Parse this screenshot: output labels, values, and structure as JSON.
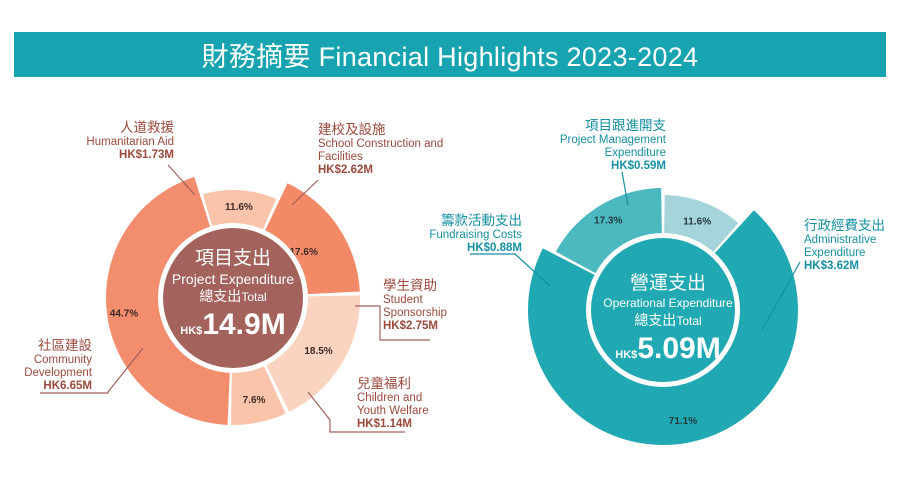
{
  "title": "財務摘要 Financial Highlights 2023-2024",
  "colors": {
    "banner": "#17a4b0",
    "project_center": "#a3625c",
    "operational_center": "#20a9b3",
    "project_slices": [
      "#f9c4aa",
      "#f28a68",
      "#fbd3c1",
      "#f9c4aa",
      "#f28d6d"
    ],
    "operational_slices": [
      "#a6d4db",
      "#20a9b3",
      "#4cb9c1"
    ]
  },
  "chart_data": [
    {
      "type": "pie",
      "center_label": {
        "zh": "項目支出",
        "en": "Project Expenditure",
        "total_zh": "總支出",
        "total_en": "Total",
        "currency": "HK$",
        "amount": "14.9M"
      },
      "slices": [
        {
          "zh": "人道救援",
          "en": "Humanitarian Aid",
          "amount": "HK$1.73M",
          "percent_label": "11.6%",
          "value": 11.6
        },
        {
          "zh": "建校及設施",
          "en": "School Construction and Facilities",
          "amount": "HK$2.62M",
          "percent_label": "17.6%",
          "value": 17.6
        },
        {
          "zh": "學生資助",
          "en": "Student Sponsorship",
          "amount": "HK$2.75M",
          "percent_label": "18.5%",
          "value": 18.5
        },
        {
          "zh": "兒童福利",
          "en": "Children and Youth Welfare",
          "amount": "HK$1.14M",
          "percent_label": "7.6%",
          "value": 7.6
        },
        {
          "zh": "社區建設",
          "en": "Community Development",
          "amount": "HK6.65M",
          "percent_label": "44.7%",
          "value": 44.7
        }
      ]
    },
    {
      "type": "pie",
      "center_label": {
        "zh": "營運支出",
        "en": "Operational Expenditure",
        "total_zh": "總支出",
        "total_en": "Total",
        "currency": "HK$",
        "amount": "5.09M"
      },
      "slices": [
        {
          "zh": "項目跟進開支",
          "en": "Project Management Expenditure",
          "amount": "HK$0.59M",
          "percent_label": "11.6%",
          "value": 11.6
        },
        {
          "zh": "行政經費支出",
          "en": "Administrative Expenditure",
          "amount": "HK$3.62M",
          "percent_label": "71.1%",
          "value": 71.1
        },
        {
          "zh": "籌款活動支出",
          "en": "Fundraising Costs",
          "amount": "HK$0.88M",
          "percent_label": "17.3%",
          "value": 17.3
        }
      ]
    }
  ]
}
